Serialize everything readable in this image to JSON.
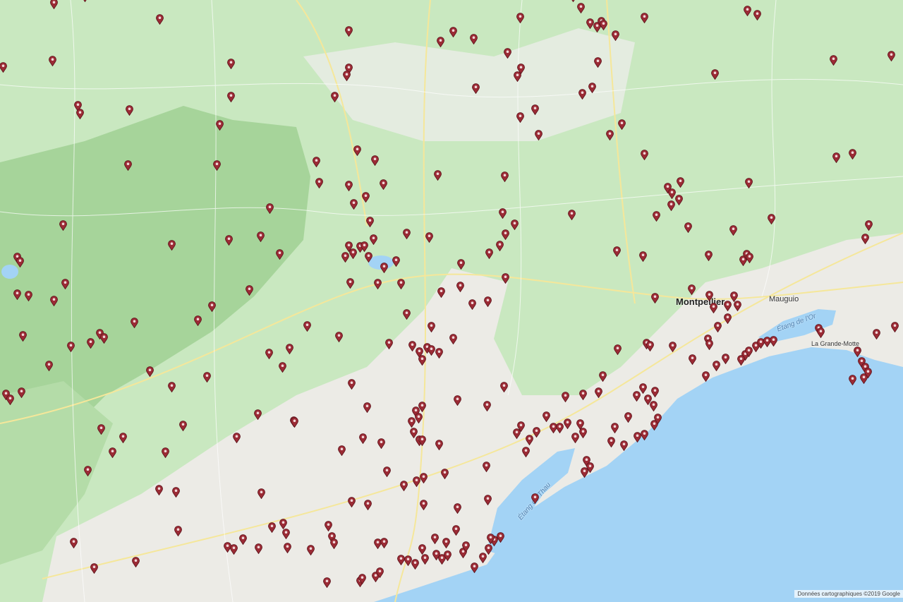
{
  "map": {
    "labels": {
      "montpellier": "Montpellier",
      "mauguio": "Mauguio",
      "etang_or": "Étang de l'Or",
      "etang_thau": "Étang de Thau",
      "grande_motte": "La Grande-Motte"
    },
    "attribution": "Données cartographiques ©2019 Google",
    "colors": {
      "land": "#c9e8c0",
      "forest": "#a6d49a",
      "urban": "#ecebe6",
      "water": "#a3d3f5",
      "marker": "#9b2b35"
    },
    "marker_icon": "map-pin-icon"
  }
}
